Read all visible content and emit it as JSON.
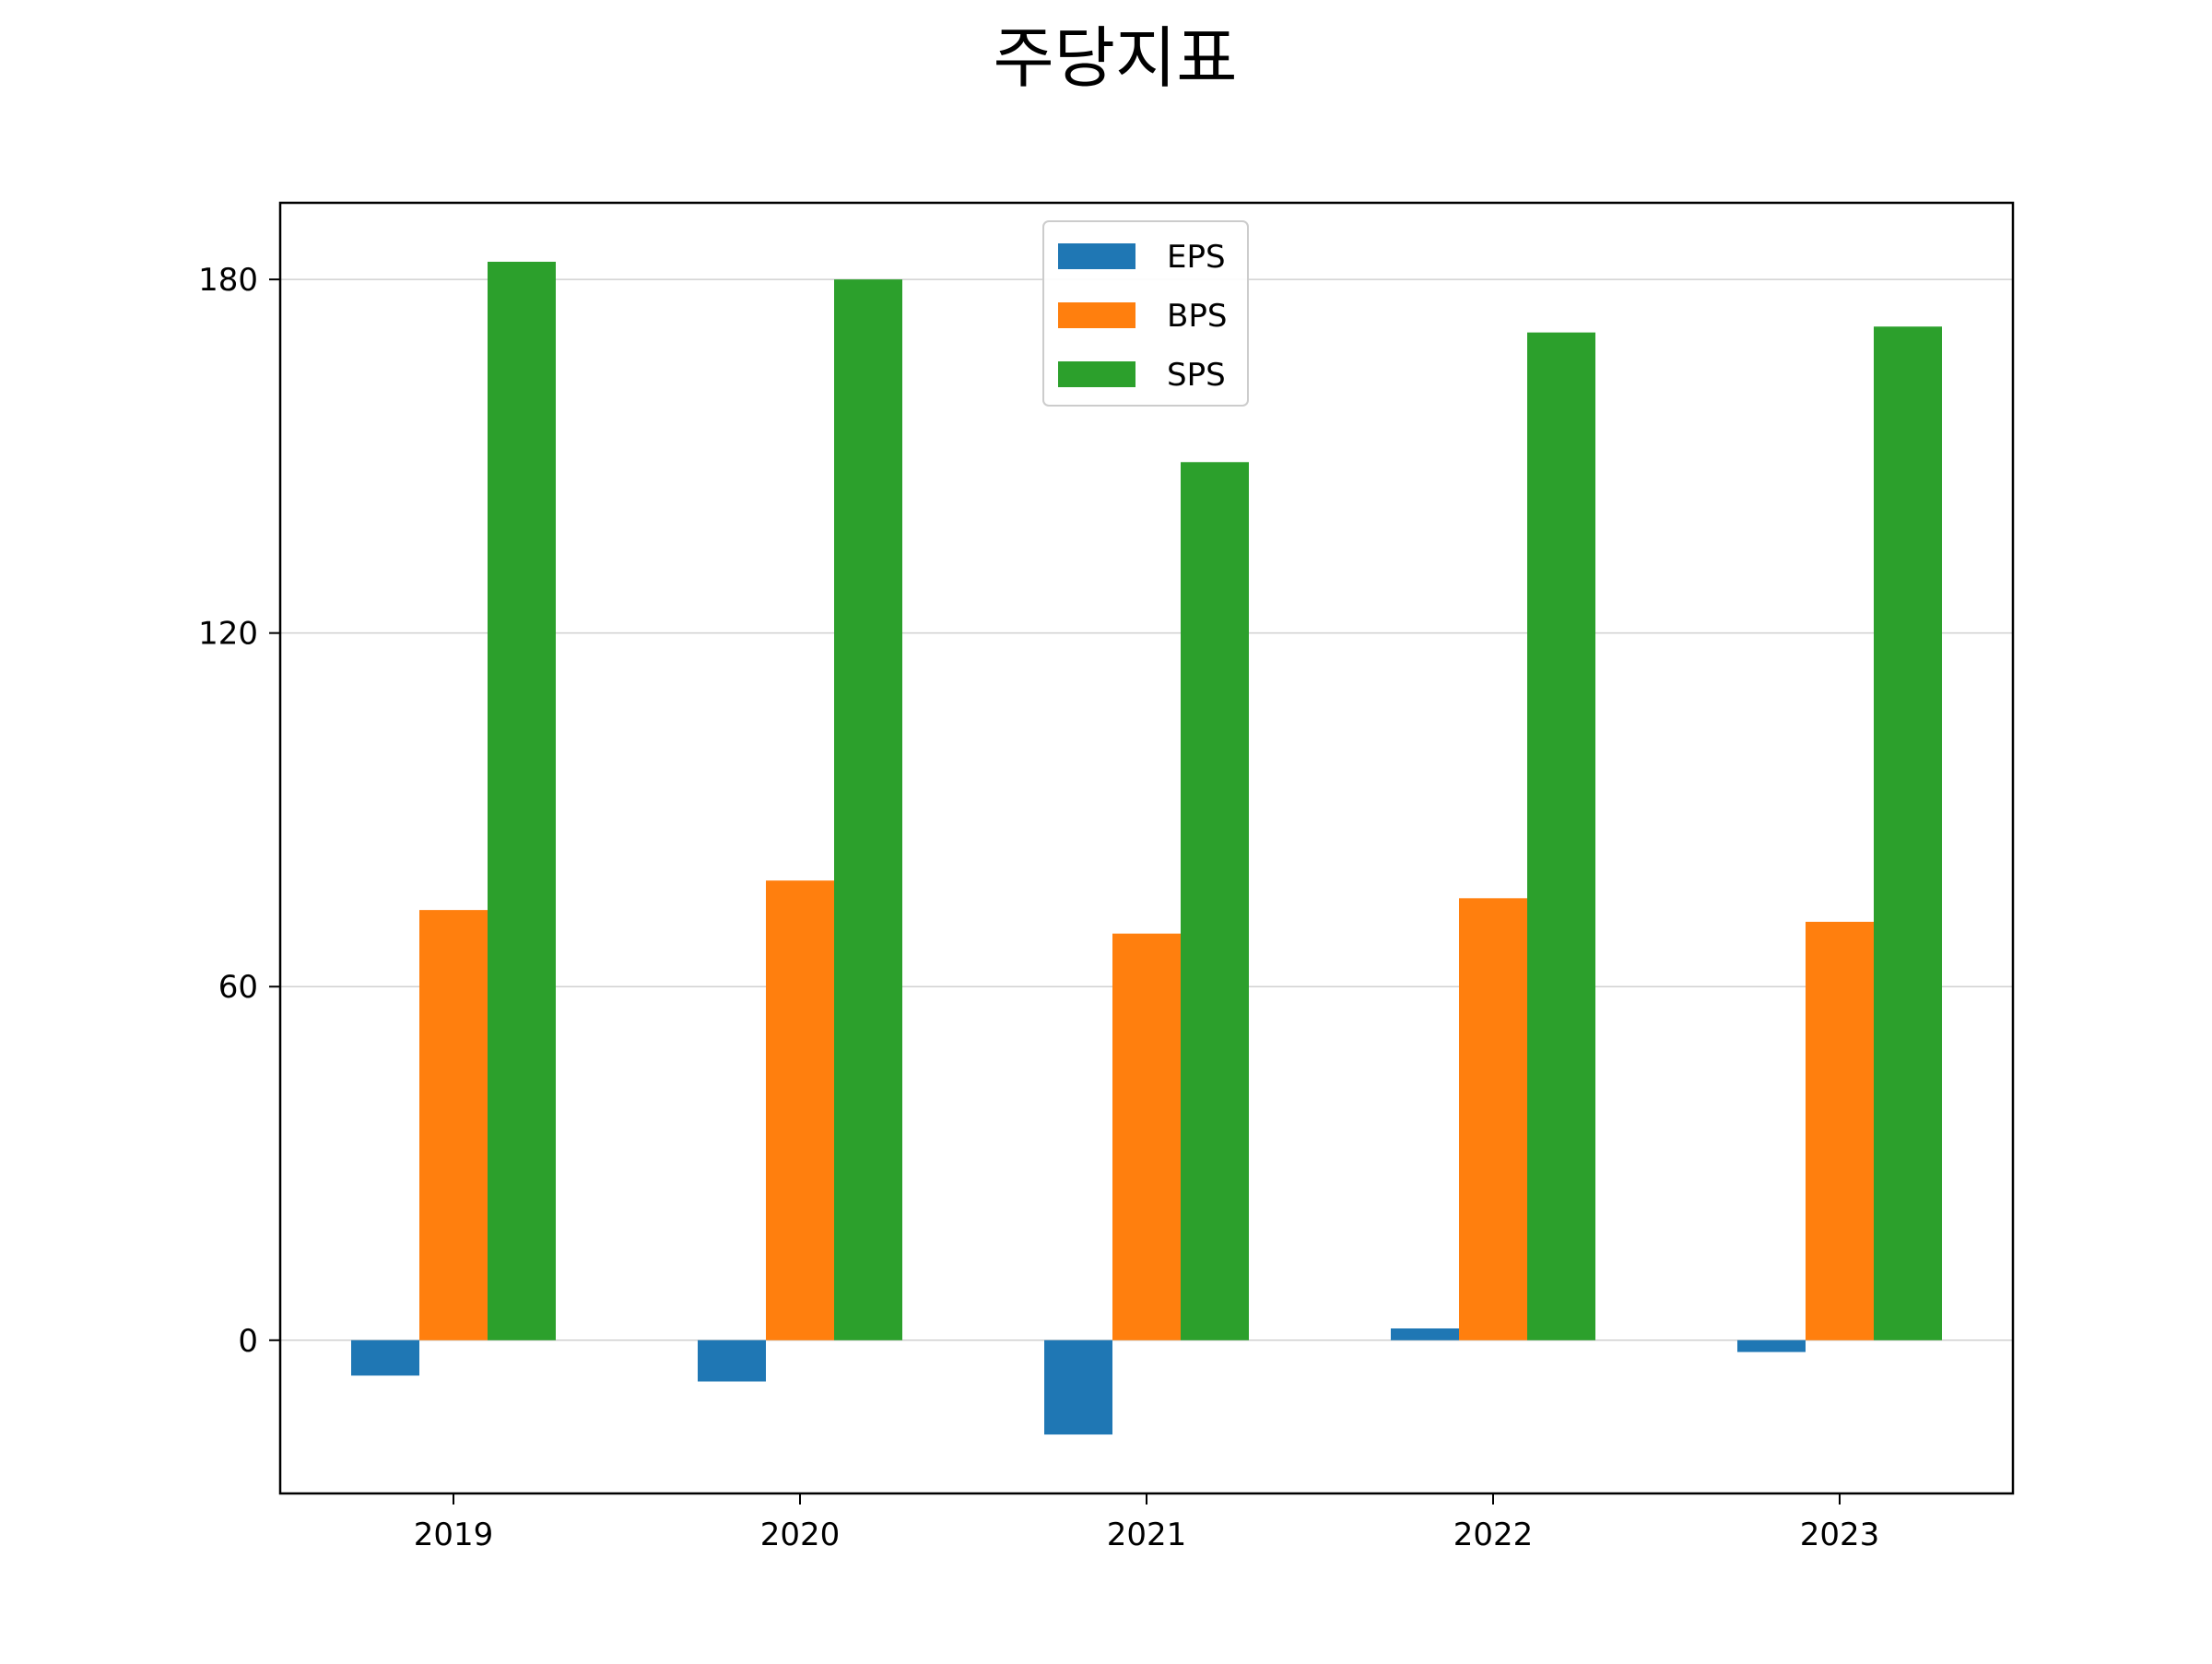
{
  "chart_data": {
    "type": "bar",
    "title": "주당지표",
    "xlabel": "",
    "ylabel": "",
    "categories": [
      "2019",
      "2020",
      "2021",
      "2022",
      "2023"
    ],
    "series": [
      {
        "name": "EPS",
        "color": "#1f77b4",
        "values": [
          -6,
          -7,
          -16,
          2,
          -2
        ]
      },
      {
        "name": "BPS",
        "color": "#ff7f0e",
        "values": [
          73,
          78,
          69,
          75,
          71
        ]
      },
      {
        "name": "SPS",
        "color": "#2ca02c",
        "values": [
          183,
          180,
          149,
          171,
          172
        ]
      }
    ],
    "yticks": [
      0,
      60,
      120,
      180
    ],
    "ylim": [
      -26,
      193
    ],
    "grid": "y",
    "legend_position": "upper center"
  }
}
